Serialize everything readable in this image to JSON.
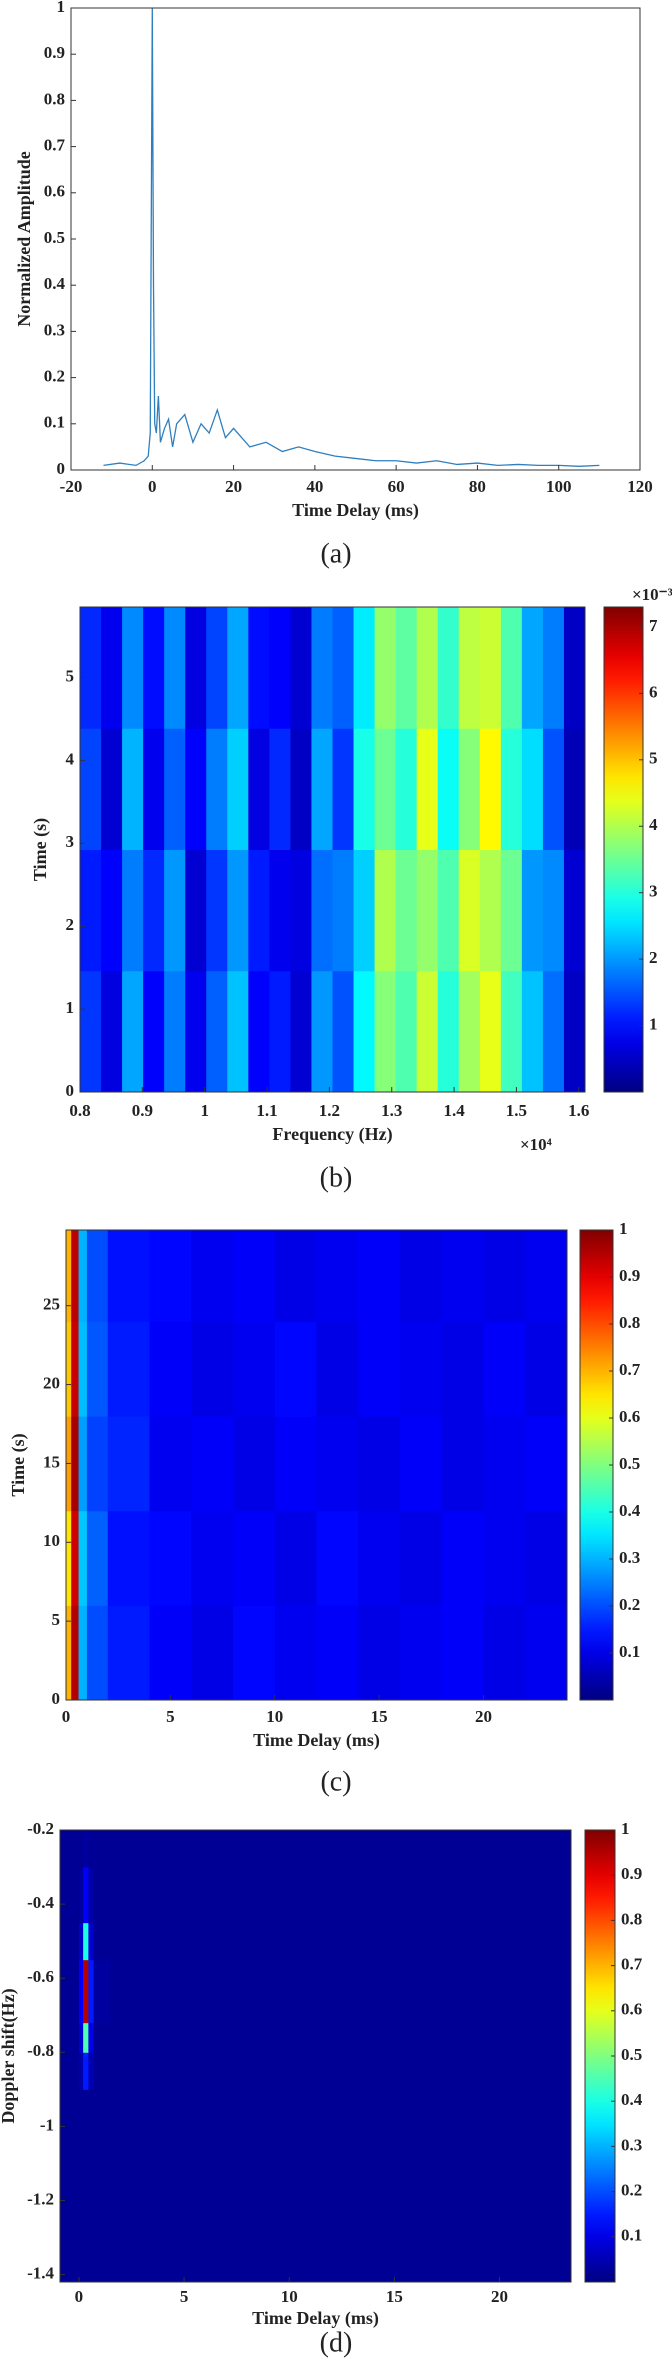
{
  "chart_data": [
    {
      "type": "line",
      "caption": "(a)",
      "xlabel": "Time Delay (ms)",
      "ylabel": "Normalized Amplitude",
      "color": "#2f7fbf",
      "x": [
        -12,
        -8,
        -4,
        -2,
        -1,
        -0.5,
        0,
        0.3,
        0.6,
        1,
        1.5,
        2,
        3,
        4,
        5,
        6,
        8,
        10,
        12,
        14,
        16,
        18,
        20,
        24,
        28,
        32,
        36,
        40,
        45,
        50,
        55,
        60,
        65,
        70,
        75,
        80,
        85,
        90,
        95,
        100,
        105,
        110
      ],
      "values": [
        0.01,
        0.015,
        0.01,
        0.02,
        0.03,
        0.08,
        1,
        0.4,
        0.1,
        0.08,
        0.16,
        0.06,
        0.09,
        0.11,
        0.05,
        0.1,
        0.12,
        0.06,
        0.1,
        0.08,
        0.13,
        0.07,
        0.09,
        0.05,
        0.06,
        0.04,
        0.05,
        0.04,
        0.03,
        0.025,
        0.02,
        0.02,
        0.015,
        0.02,
        0.012,
        0.015,
        0.01,
        0.012,
        0.01,
        0.01,
        0.008,
        0.01
      ],
      "xlim": [
        -20,
        120
      ],
      "xticks": [
        -20,
        0,
        20,
        40,
        60,
        80,
        100,
        120
      ],
      "ylim": [
        0,
        1
      ],
      "yticks": [
        0,
        0.1,
        0.2,
        0.3,
        0.4,
        0.5,
        0.6,
        0.7,
        0.8,
        0.9,
        1
      ]
    },
    {
      "type": "heatmap",
      "caption": "(b)",
      "xlabel": "Frequency (Hz)",
      "ylabel": "Time (s)",
      "x_exponent_label": "×10⁴",
      "z_exponent_label": "×10⁻³",
      "xlim": [
        0.8,
        1.61
      ],
      "xticks": [
        0.8,
        0.9,
        1,
        1.1,
        1.2,
        1.3,
        1.4,
        1.5,
        1.6
      ],
      "ylim": [
        0,
        5.85
      ],
      "yticks": [
        0,
        1,
        2,
        3,
        4,
        5
      ],
      "zlim": [
        0,
        7.3
      ],
      "zticks": [
        1,
        2,
        3,
        4,
        5,
        6,
        7
      ],
      "z": [
        [
          1.3,
          0.7,
          2.1,
          0.9,
          1.8,
          0.8,
          1.6,
          2.3,
          0.9,
          1.1,
          0.6,
          2.0,
          1.5,
          2.7,
          3.7,
          3.3,
          4.2,
          3.0,
          3.9,
          4.4,
          3.2,
          2.3,
          1.7,
          0.5
        ],
        [
          1.1,
          0.9,
          1.8,
          1.2,
          2.0,
          0.6,
          1.3,
          2.0,
          1.1,
          0.8,
          0.7,
          1.7,
          1.8,
          2.4,
          4.0,
          3.5,
          3.8,
          3.3,
          4.3,
          4.0,
          3.5,
          2.0,
          1.9,
          0.6
        ],
        [
          1.4,
          0.6,
          2.2,
          0.8,
          1.6,
          0.9,
          1.8,
          2.4,
          0.7,
          1.2,
          0.5,
          2.1,
          1.3,
          2.9,
          3.5,
          3.0,
          4.4,
          2.8,
          3.7,
          4.6,
          3.0,
          2.5,
          1.5,
          0.4
        ],
        [
          1.2,
          0.8,
          1.9,
          1.0,
          1.9,
          0.7,
          1.4,
          2.1,
          1.0,
          0.9,
          0.6,
          1.8,
          1.6,
          2.6,
          3.8,
          3.4,
          4.0,
          3.1,
          4.1,
          4.2,
          3.3,
          2.1,
          1.8,
          0.5
        ]
      ]
    },
    {
      "type": "heatmap",
      "caption": "(c)",
      "xlabel": "Time Delay (ms)",
      "ylabel": "Time (s)",
      "xlim": [
        0,
        24
      ],
      "xticks": [
        0,
        5,
        10,
        15,
        20
      ],
      "ylim": [
        0,
        29.8
      ],
      "yticks": [
        0,
        5,
        10,
        15,
        20,
        25
      ],
      "zlim": [
        0,
        1
      ],
      "zticks": [
        0.1,
        0.2,
        0.3,
        0.4,
        0.5,
        0.6,
        0.7,
        0.8,
        0.9,
        1
      ],
      "x_edges": [
        0,
        0.25,
        0.6,
        1,
        2,
        4,
        6,
        8,
        10,
        12,
        14,
        16,
        18,
        20,
        22,
        24
      ],
      "y_edges": [
        0,
        6,
        12,
        18,
        24,
        29.8
      ],
      "z": [
        [
          0.7,
          0.95,
          0.3,
          0.2,
          0.15,
          0.12,
          0.1,
          0.13,
          0.11,
          0.12,
          0.1,
          0.11,
          0.12,
          0.1,
          0.11
        ],
        [
          0.65,
          0.92,
          0.32,
          0.22,
          0.14,
          0.13,
          0.11,
          0.12,
          0.1,
          0.13,
          0.11,
          0.1,
          0.12,
          0.11,
          0.1
        ],
        [
          0.72,
          0.96,
          0.28,
          0.19,
          0.16,
          0.11,
          0.12,
          0.1,
          0.12,
          0.11,
          0.1,
          0.12,
          0.1,
          0.11,
          0.12
        ],
        [
          0.68,
          0.93,
          0.31,
          0.21,
          0.15,
          0.12,
          0.1,
          0.11,
          0.13,
          0.1,
          0.12,
          0.11,
          0.1,
          0.12,
          0.1
        ],
        [
          0.7,
          0.94,
          0.3,
          0.2,
          0.14,
          0.13,
          0.11,
          0.12,
          0.1,
          0.11,
          0.12,
          0.1,
          0.11,
          0.1,
          0.11
        ]
      ]
    },
    {
      "type": "heatmap",
      "caption": "(d)",
      "xlabel": "Time Delay (ms)",
      "ylabel": "Doppler shift(Hz)",
      "xlim": [
        -0.9,
        23.4
      ],
      "xticks": [
        0,
        5,
        10,
        15,
        20
      ],
      "ylim": [
        -1.42,
        -0.2
      ],
      "yticks": [
        -1.4,
        -1.2,
        -1,
        -0.8,
        -0.6,
        -0.4,
        -0.2
      ],
      "zlim": [
        0,
        1
      ],
      "zticks": [
        0.1,
        0.2,
        0.3,
        0.4,
        0.5,
        0.6,
        0.7,
        0.8,
        0.9,
        1
      ],
      "x_edges": [
        -0.9,
        0,
        0.2,
        0.45,
        0.7,
        1.5,
        23.4
      ],
      "y_edges": [
        -1.42,
        -0.9,
        -0.8,
        -0.72,
        -0.55,
        -0.45,
        -0.3,
        -0.2
      ],
      "z": [
        [
          0.02,
          0.02,
          0.02,
          0.02,
          0.02,
          0.02
        ],
        [
          0.02,
          0.04,
          0.15,
          0.05,
          0.02,
          0.02
        ],
        [
          0.02,
          0.08,
          0.45,
          0.1,
          0.02,
          0.02
        ],
        [
          0.02,
          0.12,
          0.95,
          0.15,
          0.03,
          0.02
        ],
        [
          0.02,
          0.07,
          0.4,
          0.08,
          0.02,
          0.02
        ],
        [
          0.02,
          0.03,
          0.12,
          0.04,
          0.02,
          0.02
        ],
        [
          0.02,
          0.02,
          0.03,
          0.02,
          0.02,
          0.02
        ]
      ]
    }
  ]
}
